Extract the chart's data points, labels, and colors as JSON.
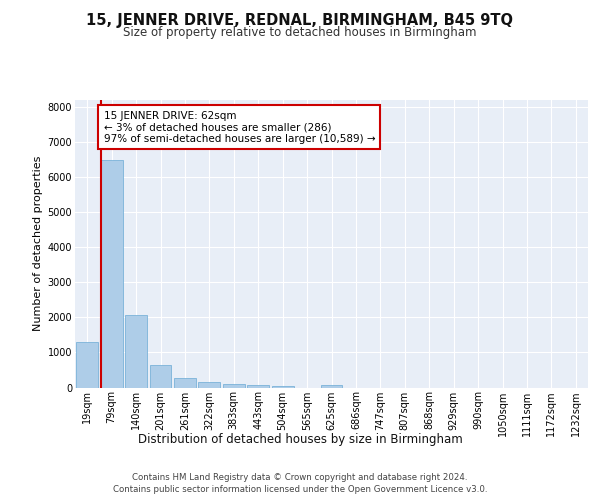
{
  "title": "15, JENNER DRIVE, REDNAL, BIRMINGHAM, B45 9TQ",
  "subtitle": "Size of property relative to detached houses in Birmingham",
  "xlabel": "Distribution of detached houses by size in Birmingham",
  "ylabel": "Number of detached properties",
  "bin_labels": [
    "19sqm",
    "79sqm",
    "140sqm",
    "201sqm",
    "261sqm",
    "322sqm",
    "383sqm",
    "443sqm",
    "504sqm",
    "565sqm",
    "625sqm",
    "686sqm",
    "747sqm",
    "807sqm",
    "868sqm",
    "929sqm",
    "990sqm",
    "1050sqm",
    "1111sqm",
    "1172sqm",
    "1232sqm"
  ],
  "bar_values": [
    1300,
    6500,
    2080,
    640,
    280,
    160,
    100,
    70,
    50,
    0,
    80,
    0,
    0,
    0,
    0,
    0,
    0,
    0,
    0,
    0,
    0
  ],
  "bar_color": "#aecde8",
  "bar_edge_color": "#6aaad4",
  "annotation_box_text": "15 JENNER DRIVE: 62sqm\n← 3% of detached houses are smaller (286)\n97% of semi-detached houses are larger (10,589) →",
  "annotation_box_color": "#ffffff",
  "annotation_box_edge_color": "#cc0000",
  "vline_color": "#cc0000",
  "vline_x": 0.57,
  "ylim": [
    0,
    8200
  ],
  "yticks": [
    0,
    1000,
    2000,
    3000,
    4000,
    5000,
    6000,
    7000,
    8000
  ],
  "background_color": "#e8eef7",
  "footer_text": "Contains HM Land Registry data © Crown copyright and database right 2024.\nContains public sector information licensed under the Open Government Licence v3.0.",
  "title_fontsize": 10.5,
  "subtitle_fontsize": 8.5,
  "xlabel_fontsize": 8.5,
  "ylabel_fontsize": 8.0,
  "tick_fontsize": 7.0,
  "annotation_fontsize": 7.5
}
